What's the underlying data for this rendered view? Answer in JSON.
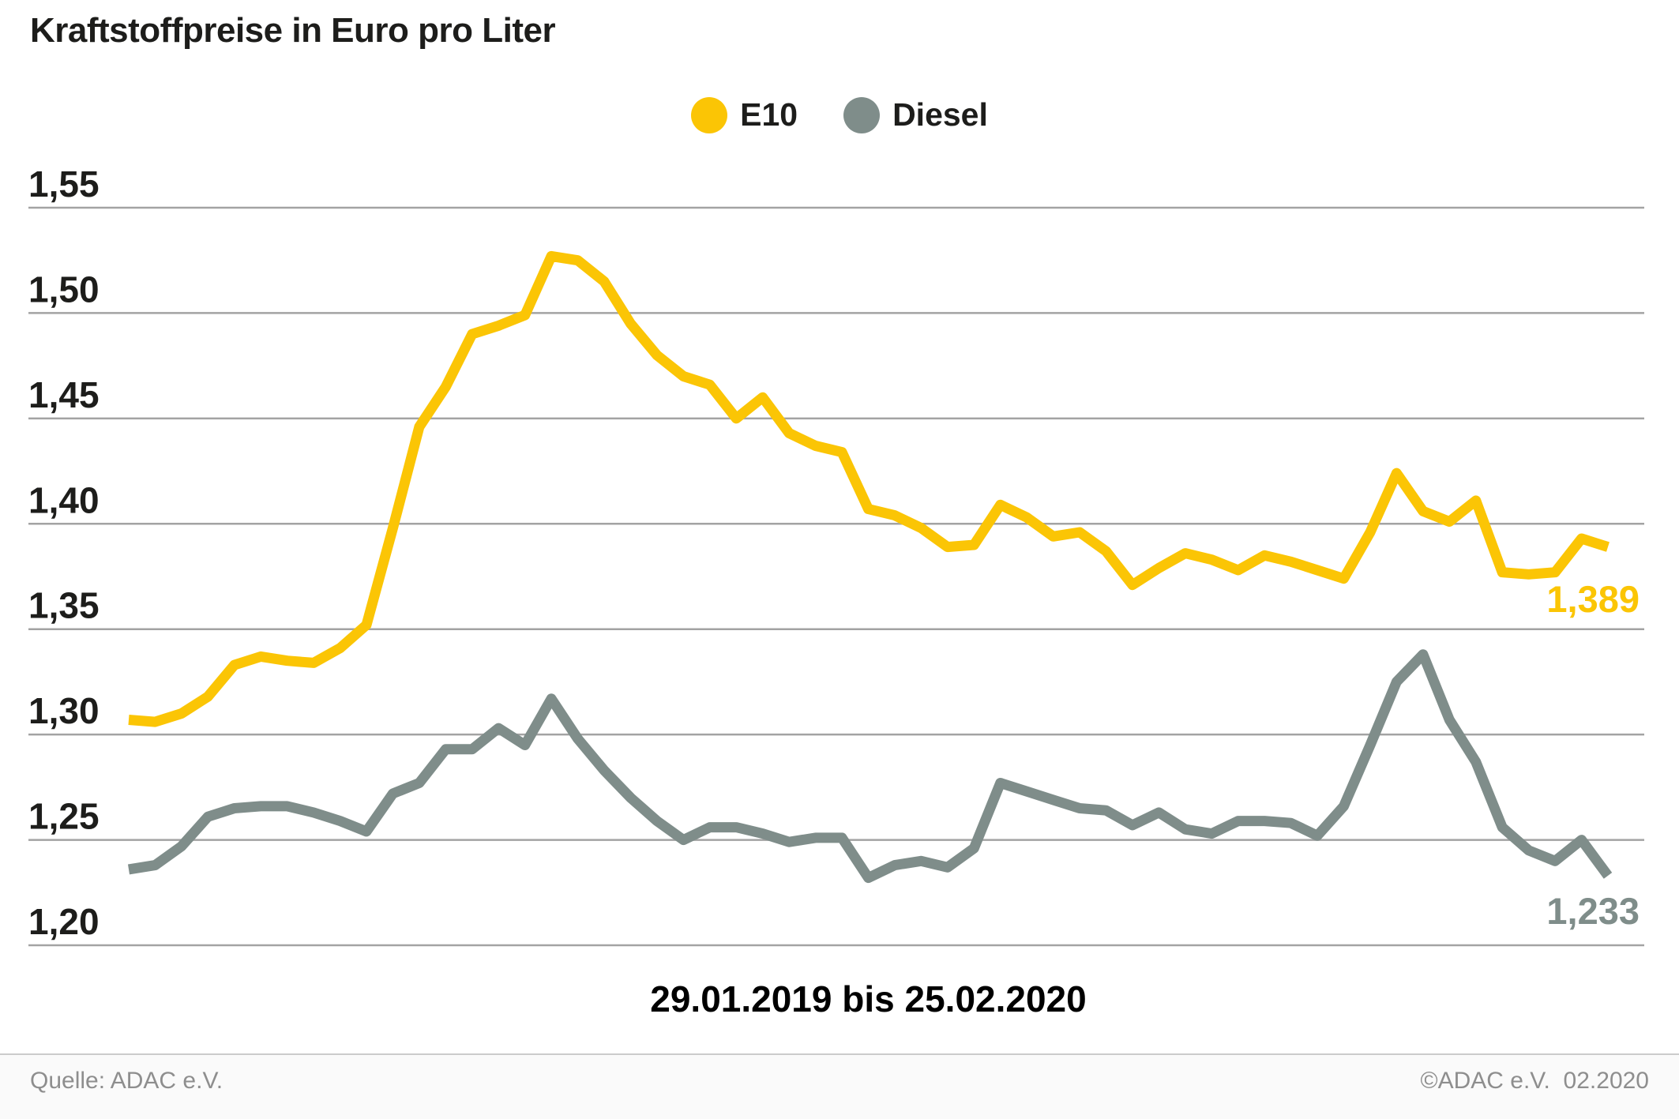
{
  "title": "Kraftstoffpreise in Euro pro Liter",
  "legend": {
    "items": [
      {
        "label": "E10",
        "color": "#fbc505"
      },
      {
        "label": "Diesel",
        "color": "#7f8d8a"
      }
    ]
  },
  "x_range_label": "29.01.2019 bis 25.02.2020",
  "footer": {
    "source": "Quelle: ADAC e.V.",
    "copyright": "©ADAC e.V.  02.2020"
  },
  "chart_data": {
    "type": "line",
    "title": "Kraftstoffpreise in Euro pro Liter",
    "xlabel": "29.01.2019 bis 25.02.2020",
    "ylabel": "Euro pro Liter",
    "x_start": "29.01.2019",
    "x_end": "25.02.2020",
    "x_interval": "weekly",
    "ylim": [
      1.2,
      1.55
    ],
    "ytick_step": 0.05,
    "ytick_labels": [
      "1,55",
      "1,50",
      "1,45",
      "1,40",
      "1,35",
      "1,30",
      "1,25",
      "1,20"
    ],
    "grid": true,
    "gridline_color": "#a3a3a3",
    "legend_position": "top-center",
    "series": [
      {
        "name": "E10",
        "color": "#fbc505",
        "end_label": "1,389",
        "end_value": 1.389,
        "values": [
          1.307,
          1.306,
          1.31,
          1.318,
          1.333,
          1.337,
          1.335,
          1.334,
          1.341,
          1.352,
          1.398,
          1.446,
          1.465,
          1.49,
          1.494,
          1.499,
          1.527,
          1.525,
          1.515,
          1.495,
          1.48,
          1.47,
          1.466,
          1.45,
          1.46,
          1.443,
          1.437,
          1.434,
          1.407,
          1.404,
          1.398,
          1.389,
          1.39,
          1.409,
          1.403,
          1.394,
          1.396,
          1.387,
          1.371,
          1.379,
          1.386,
          1.383,
          1.378,
          1.385,
          1.382,
          1.378,
          1.374,
          1.396,
          1.424,
          1.406,
          1.401,
          1.411,
          1.377,
          1.376,
          1.377,
          1.393,
          1.389
        ]
      },
      {
        "name": "Diesel",
        "color": "#7f8d8a",
        "end_label": "1,233",
        "end_value": 1.233,
        "values": [
          1.236,
          1.238,
          1.247,
          1.261,
          1.265,
          1.266,
          1.266,
          1.263,
          1.259,
          1.254,
          1.272,
          1.277,
          1.293,
          1.293,
          1.303,
          1.295,
          1.317,
          1.298,
          1.283,
          1.27,
          1.259,
          1.25,
          1.256,
          1.256,
          1.253,
          1.249,
          1.251,
          1.251,
          1.232,
          1.238,
          1.24,
          1.237,
          1.246,
          1.277,
          1.273,
          1.269,
          1.265,
          1.264,
          1.257,
          1.263,
          1.255,
          1.253,
          1.259,
          1.259,
          1.258,
          1.252,
          1.266,
          1.295,
          1.325,
          1.338,
          1.307,
          1.287,
          1.256,
          1.245,
          1.24,
          1.25,
          1.233
        ]
      }
    ]
  }
}
